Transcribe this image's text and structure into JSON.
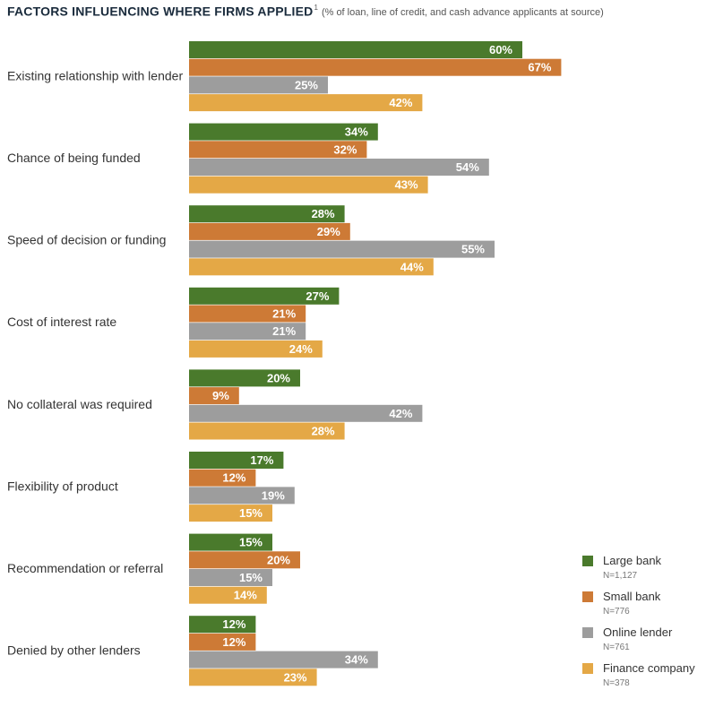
{
  "title": {
    "main": "FACTORS INFLUENCING WHERE FIRMS APPLIED",
    "footnote_marker": "1",
    "subtitle": "(% of loan, line of credit, and cash advance applicants at source)"
  },
  "legend": [
    {
      "name": "Large bank",
      "n": "N=1,127",
      "color": "#4a7a2c"
    },
    {
      "name": "Small bank",
      "n": "N=776",
      "color": "#cd7a36"
    },
    {
      "name": "Online lender",
      "n": "N=761",
      "color": "#9d9d9d"
    },
    {
      "name": "Finance company",
      "n": "N=378",
      "color": "#e4a846"
    }
  ],
  "chart_data": {
    "type": "bar",
    "orientation": "horizontal",
    "value_unit": "%",
    "categories": [
      "Existing relationship with lender",
      "Chance of being funded",
      "Speed of decision or funding",
      "Cost of interest rate",
      "No collateral was required",
      "Flexibility of product",
      "Recommendation or referral",
      "Denied by other lenders"
    ],
    "series": [
      {
        "name": "Large bank",
        "color": "#4a7a2c",
        "values": [
          60,
          34,
          28,
          27,
          20,
          17,
          15,
          12
        ]
      },
      {
        "name": "Small bank",
        "color": "#cd7a36",
        "values": [
          67,
          32,
          29,
          21,
          9,
          12,
          20,
          12
        ]
      },
      {
        "name": "Online lender",
        "color": "#9d9d9d",
        "values": [
          25,
          54,
          55,
          21,
          42,
          19,
          15,
          34
        ]
      },
      {
        "name": "Finance company",
        "color": "#e4a846",
        "values": [
          42,
          43,
          44,
          24,
          28,
          15,
          14,
          23
        ]
      }
    ],
    "xlim": [
      0,
      100
    ],
    "grid": false,
    "legend_position": "bottom-right"
  }
}
